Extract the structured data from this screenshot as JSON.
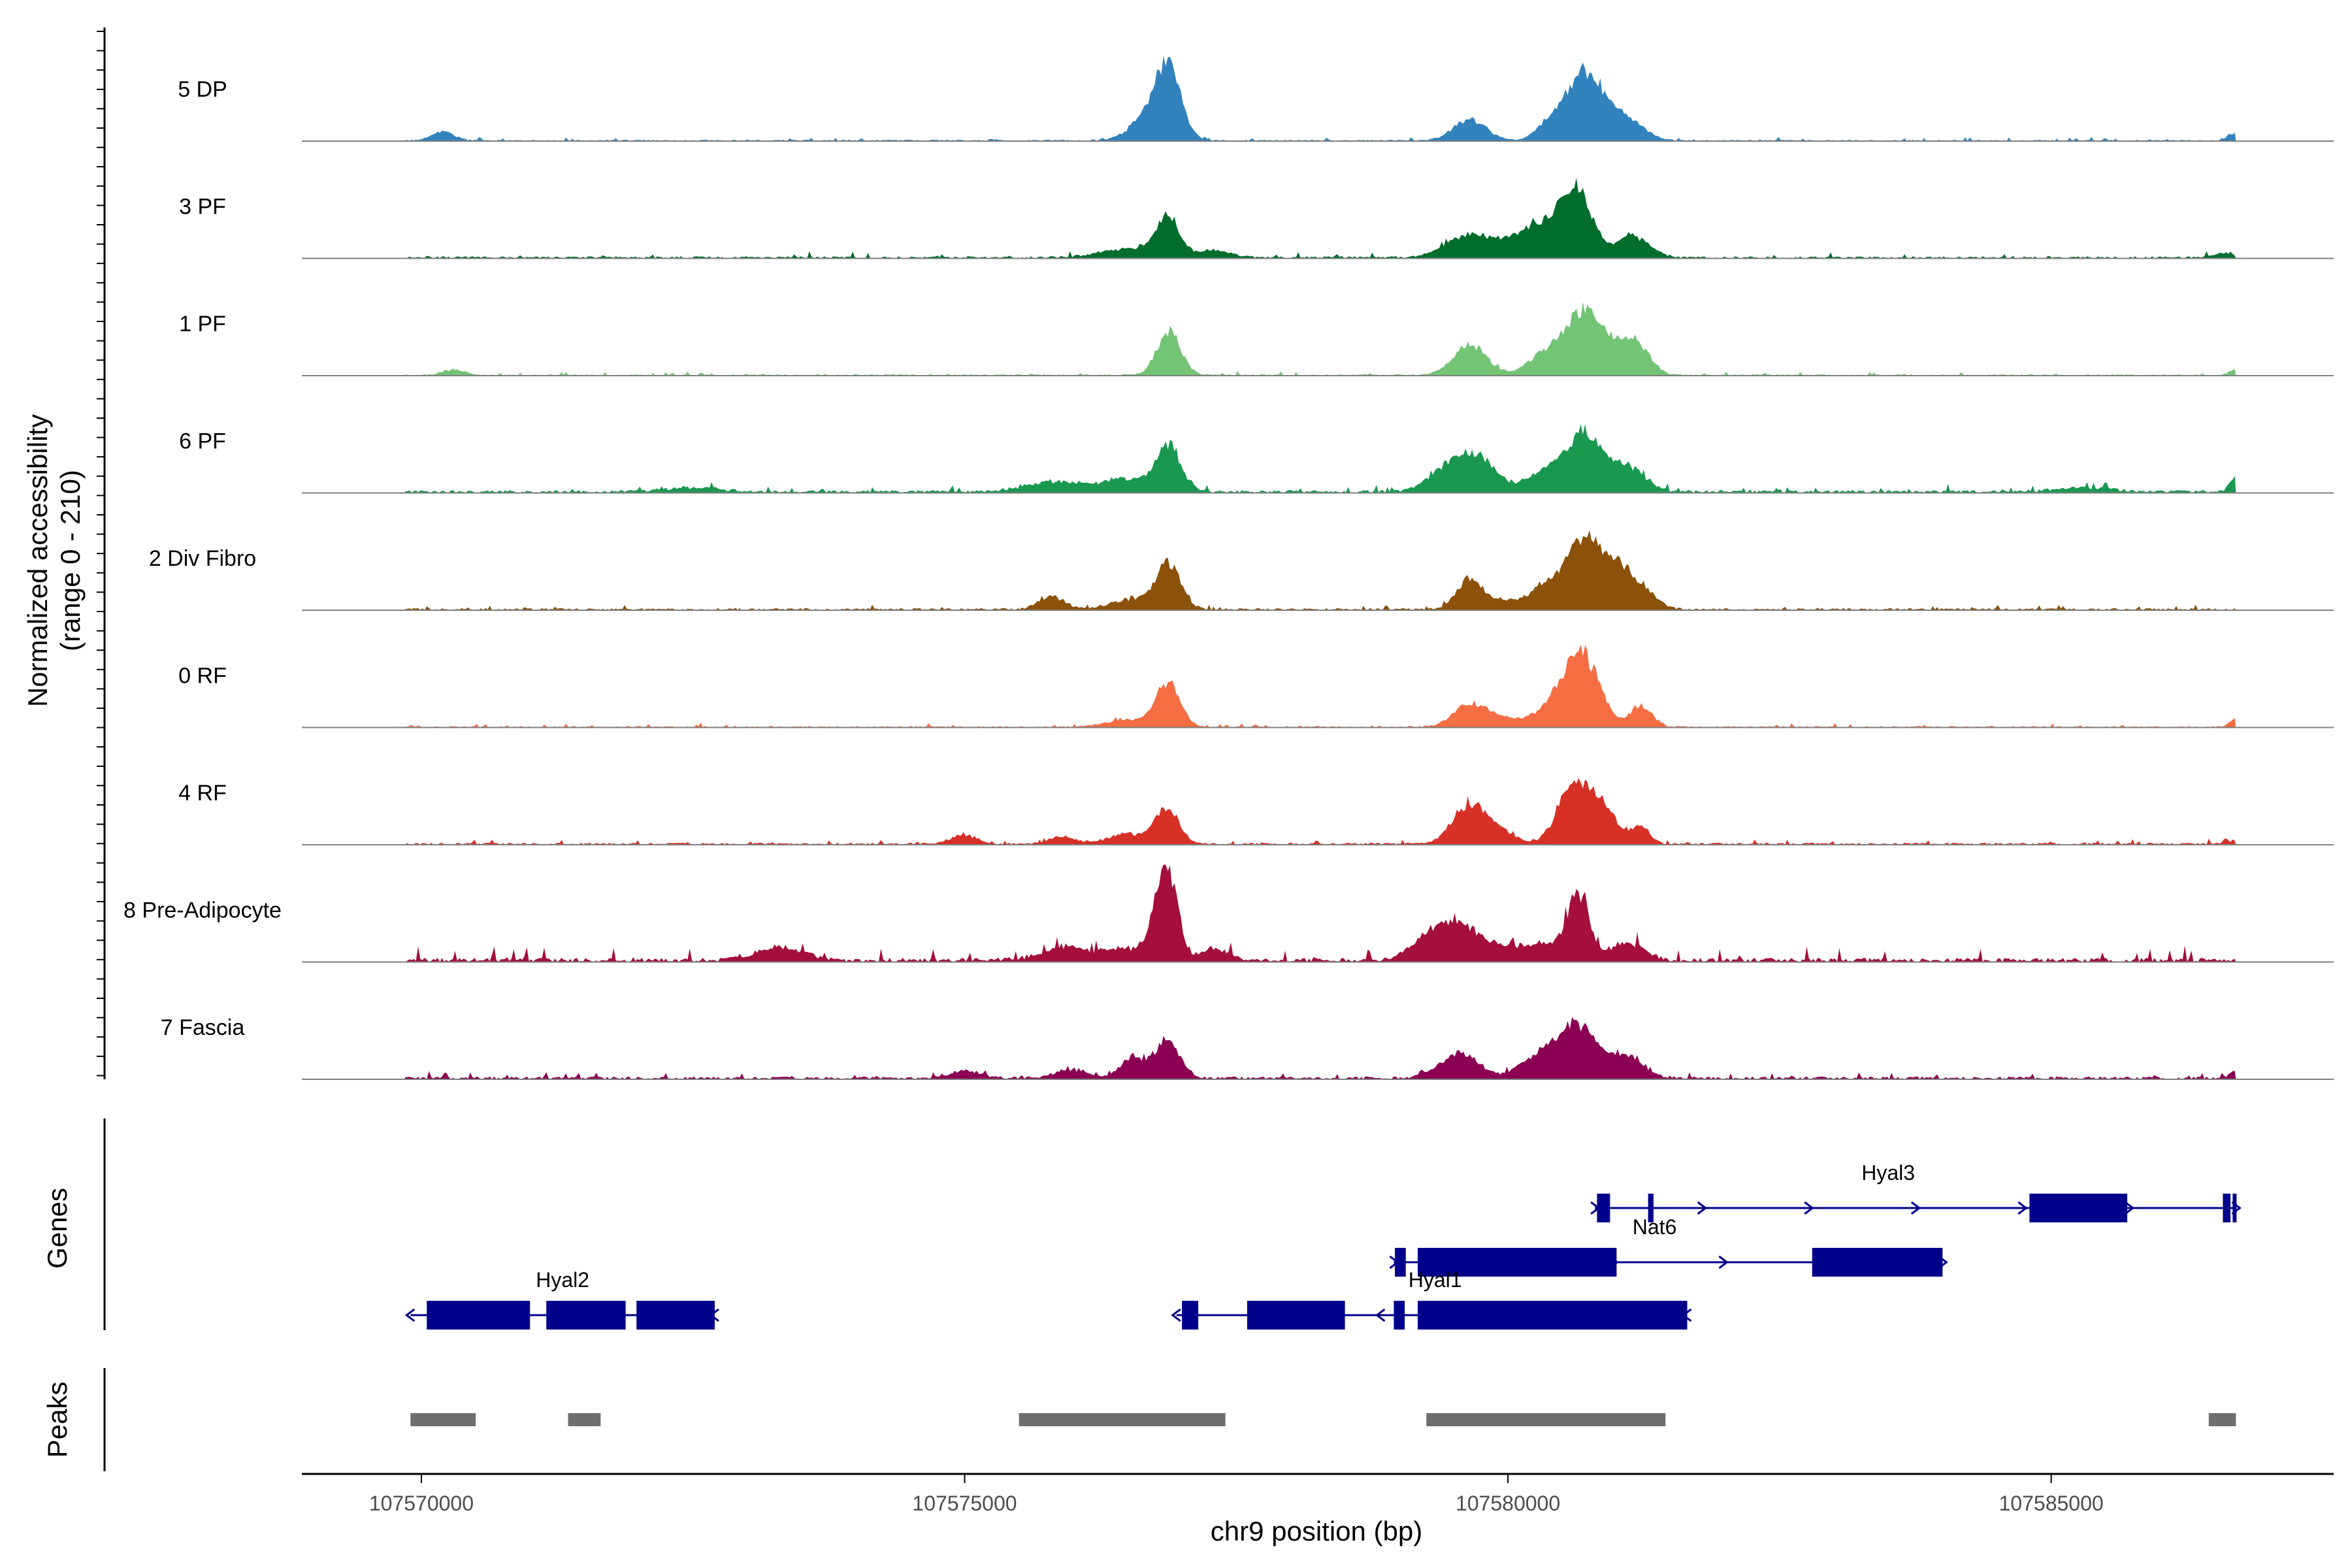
{
  "chart_data": {
    "type": "area",
    "title": "",
    "ylabel": "Normalized accessibility\n(range 0 - 210)",
    "ylabel_lines": [
      "Normalized accessibility",
      "(range 0 - 210)"
    ],
    "y_range": [
      0,
      210
    ],
    "xlabel": "chr9 position (bp)",
    "xlim": [
      107568900,
      107587600
    ],
    "x_ticks": [
      107570000,
      107575000,
      107580000,
      107585000
    ],
    "x_tick_labels": [
      "107570000",
      "107575000",
      "107580000",
      "107585000"
    ],
    "region": [
      107569850,
      107586700
    ],
    "tracks": [
      {
        "name": "5 DP",
        "color": "#3182bd",
        "peaks": [
          [
            107576880,
            0.8,
            110
          ],
          [
            107576740,
            0.4,
            180
          ],
          [
            107579650,
            0.3,
            150
          ],
          [
            107580730,
            0.95,
            160
          ],
          [
            107580430,
            0.3,
            140
          ],
          [
            107581100,
            0.3,
            150
          ],
          [
            107570200,
            0.13,
            100
          ],
          [
            107586680,
            0.1,
            60
          ]
        ],
        "noise": [
          0.02,
          0.05
        ]
      },
      {
        "name": "3 PF",
        "color": "#006d2c",
        "peaks": [
          [
            107576870,
            0.55,
            110
          ],
          [
            107576500,
            0.12,
            250
          ],
          [
            107579650,
            0.32,
            220
          ],
          [
            107580620,
            0.9,
            150
          ],
          [
            107580250,
            0.4,
            220
          ],
          [
            107581150,
            0.3,
            150
          ],
          [
            107577300,
            0.1,
            150
          ],
          [
            107586600,
            0.06,
            80
          ]
        ],
        "noise": [
          0.03,
          0.08
        ]
      },
      {
        "name": "1 PF",
        "color": "#74c476",
        "peaks": [
          [
            107576880,
            0.62,
            110
          ],
          [
            107579650,
            0.44,
            150
          ],
          [
            107580700,
            0.9,
            160
          ],
          [
            107580350,
            0.3,
            160
          ],
          [
            107581200,
            0.4,
            120
          ],
          [
            107581000,
            0.3,
            120
          ],
          [
            107570300,
            0.08,
            100
          ],
          [
            107586700,
            0.08,
            60
          ]
        ],
        "noise": [
          0.02,
          0.05
        ]
      },
      {
        "name": "6 PF",
        "color": "#1a9850",
        "peaks": [
          [
            107576880,
            0.62,
            110
          ],
          [
            107576500,
            0.18,
            250
          ],
          [
            107575800,
            0.14,
            250
          ],
          [
            107579700,
            0.5,
            180
          ],
          [
            107579400,
            0.25,
            160
          ],
          [
            107580700,
            0.8,
            160
          ],
          [
            107580350,
            0.3,
            160
          ],
          [
            107581100,
            0.35,
            160
          ],
          [
            107586700,
            0.25,
            50
          ],
          [
            107585300,
            0.06,
            250
          ],
          [
            107572500,
            0.06,
            250
          ]
        ],
        "noise": [
          0.04,
          0.09
        ]
      },
      {
        "name": "2 Div Fibro",
        "color": "#8c510a",
        "peaks": [
          [
            107576880,
            0.65,
            110
          ],
          [
            107576550,
            0.14,
            200
          ],
          [
            107575800,
            0.18,
            120
          ],
          [
            107579650,
            0.42,
            120
          ],
          [
            107579950,
            0.12,
            100
          ],
          [
            107580700,
            0.95,
            150
          ],
          [
            107580350,
            0.35,
            160
          ],
          [
            107581150,
            0.4,
            160
          ],
          [
            107580950,
            0.35,
            120
          ]
        ],
        "noise": [
          0.03,
          0.06
        ]
      },
      {
        "name": "0 RF",
        "color": "#f46d43",
        "peaks": [
          [
            107576870,
            0.6,
            110
          ],
          [
            107576500,
            0.1,
            200
          ],
          [
            107579650,
            0.3,
            150
          ],
          [
            107579950,
            0.12,
            180
          ],
          [
            107580680,
            1.0,
            160
          ],
          [
            107580400,
            0.25,
            150
          ],
          [
            107581230,
            0.3,
            100
          ],
          [
            107586700,
            0.1,
            60
          ]
        ],
        "noise": [
          0.02,
          0.05
        ]
      },
      {
        "name": "4 RF",
        "color": "#d73027",
        "peaks": [
          [
            107576860,
            0.48,
            110
          ],
          [
            107576500,
            0.14,
            180
          ],
          [
            107575000,
            0.12,
            120
          ],
          [
            107575900,
            0.1,
            120
          ],
          [
            107579650,
            0.58,
            150
          ],
          [
            107579950,
            0.15,
            120
          ],
          [
            107580620,
            0.9,
            150
          ],
          [
            107580900,
            0.4,
            120
          ],
          [
            107581220,
            0.25,
            80
          ],
          [
            107586700,
            0.06,
            60
          ]
        ],
        "noise": [
          0.03,
          0.06
        ]
      },
      {
        "name": "8 Pre-Adipocyte",
        "color": "#a50f3b",
        "peaks": [
          [
            107576850,
            1.3,
            100
          ],
          [
            107576500,
            0.16,
            250
          ],
          [
            107575900,
            0.18,
            200
          ],
          [
            107579600,
            0.4,
            220
          ],
          [
            107579300,
            0.3,
            180
          ],
          [
            107580650,
            0.85,
            100
          ],
          [
            107581100,
            0.25,
            150
          ],
          [
            107580300,
            0.22,
            250
          ],
          [
            107573300,
            0.2,
            200
          ],
          [
            107577300,
            0.16,
            120
          ]
        ],
        "noise": [
          0.06,
          0.2
        ]
      },
      {
        "name": "7 Fascia",
        "color": "#8b0053",
        "peaks": [
          [
            107576870,
            0.55,
            110
          ],
          [
            107576550,
            0.3,
            110
          ],
          [
            107576000,
            0.12,
            150
          ],
          [
            107575000,
            0.1,
            150
          ],
          [
            107579600,
            0.3,
            150
          ],
          [
            107579400,
            0.12,
            150
          ],
          [
            107580650,
            0.7,
            180
          ],
          [
            107580300,
            0.3,
            180
          ],
          [
            107581100,
            0.3,
            150
          ],
          [
            107586700,
            0.1,
            60
          ]
        ],
        "noise": [
          0.04,
          0.08
        ]
      }
    ],
    "genes_label": "Genes",
    "genes": [
      {
        "name": "Hyal3",
        "strand": "+",
        "row": 0,
        "start": 107580800,
        "end": 107586700,
        "exons": [
          [
            107580820,
            107580940
          ],
          [
            107581290,
            107581340
          ],
          [
            107584800,
            107585700
          ],
          [
            107586580,
            107586650
          ],
          [
            107586670,
            107586700
          ]
        ],
        "label_x": 107583500
      },
      {
        "name": "Nat6",
        "strand": "+",
        "row": 1,
        "start": 107578950,
        "end": 107584000,
        "exons": [
          [
            107578960,
            107579060
          ],
          [
            107579170,
            107581000
          ],
          [
            107582800,
            107584000
          ]
        ],
        "label_x": 107581350
      },
      {
        "name": "Hyal2",
        "strand": "-",
        "row": 2,
        "start": 107569900,
        "end": 107572700,
        "exons": [
          [
            107570050,
            107571000
          ],
          [
            107571150,
            107571880
          ],
          [
            107571980,
            107572700
          ]
        ],
        "label_x": 107571300
      },
      {
        "name": "Hyal1",
        "strand": "-",
        "row": 2,
        "start": 107576950,
        "end": 107581650,
        "exons": [
          [
            107577000,
            107577150
          ],
          [
            107577600,
            107578500
          ],
          [
            107578950,
            107579050
          ],
          [
            107579170,
            107581650
          ]
        ],
        "label_x": 107579330
      }
    ],
    "peaks_label": "Peaks",
    "peak_regions": [
      [
        107569900,
        107570500
      ],
      [
        107571350,
        107571650
      ],
      [
        107575500,
        107577400
      ],
      [
        107579250,
        107581450
      ],
      [
        107586450,
        107586700
      ]
    ]
  }
}
